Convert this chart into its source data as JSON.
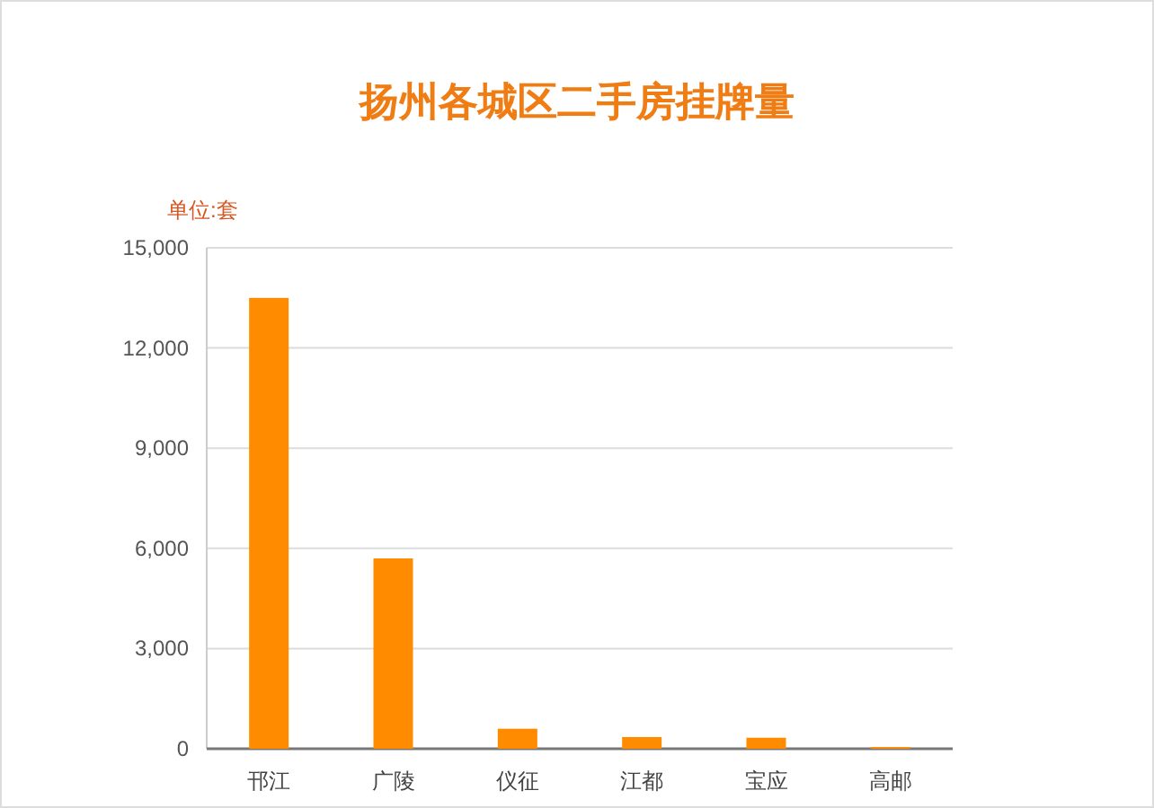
{
  "chart_data": {
    "type": "bar",
    "title": "扬州各城区二手房挂牌量",
    "ylabel": "单位:套",
    "categories": [
      "邗江",
      "广陵",
      "仪征",
      "江都",
      "宝应",
      "高邮"
    ],
    "values": [
      13500,
      5700,
      600,
      350,
      330,
      50
    ],
    "color": "#ff8c00",
    "ylim": [
      0,
      15000
    ],
    "yticks": [
      {
        "value": 0,
        "label": "0"
      },
      {
        "value": 3000,
        "label": "3,000"
      },
      {
        "value": 6000,
        "label": "6,000"
      },
      {
        "value": 9000,
        "label": "9,000"
      },
      {
        "value": 12000,
        "label": "12,000"
      },
      {
        "value": 15000,
        "label": "15,000"
      }
    ],
    "grid": "y"
  }
}
